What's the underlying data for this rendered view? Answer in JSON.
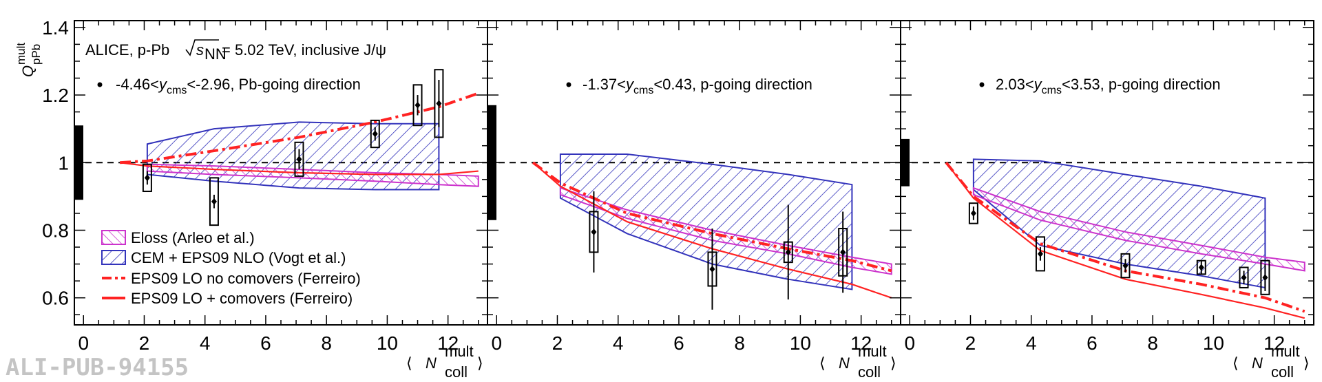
{
  "chart_data": {
    "type": "line",
    "experiment": "ALICE, p-Pb",
    "energy_value": "= 5.02 TeV, inclusive J/ψ",
    "ylabel": "Q",
    "ylabel_sup": "mult",
    "ylabel_sub": "pPb",
    "xlabel": "N",
    "xlabel_sup": "mult",
    "xlabel_sub": "coll",
    "watermark": "ALI-PUB-94155",
    "xlim": [
      -0.3,
      13.3
    ],
    "ylim": [
      0.52,
      1.42
    ],
    "yticks": [
      "0.6",
      "0.8",
      "1",
      "1.2",
      "1.4"
    ],
    "xticks": [
      "0",
      "2",
      "4",
      "6",
      "8",
      "10",
      "12"
    ],
    "colors": {
      "eloss": "#cc33cc",
      "cem": "#3333bb",
      "eps_no_com": "#ff2222",
      "eps_com": "#ff2222",
      "data": "#000000"
    },
    "legend": {
      "placement": "bottom-left of first panel",
      "entries": [
        {
          "key": "eloss",
          "label": "Eloss (Arleo et al.)"
        },
        {
          "key": "cem",
          "label": "CEM + EPS09 NLO (Vogt et al.)"
        },
        {
          "key": "eps_no_com",
          "label": "EPS09 LO no comovers (Ferreiro)"
        },
        {
          "key": "eps_com",
          "label": "EPS09 LO + comovers (Ferreiro)"
        }
      ]
    },
    "panels": [
      {
        "range_pre": "-4.46<",
        "range_post": "<-2.96, Pb-going direction",
        "global_unc": 0.11,
        "data": [
          {
            "x": 2.1,
            "y": 0.955,
            "stat": 0.02,
            "sys": 0.04
          },
          {
            "x": 4.3,
            "y": 0.885,
            "stat": 0.02,
            "sys": 0.07
          },
          {
            "x": 7.1,
            "y": 1.01,
            "stat": 0.03,
            "sys": 0.05
          },
          {
            "x": 9.6,
            "y": 1.085,
            "stat": 0.02,
            "sys": 0.04
          },
          {
            "x": 11.0,
            "y": 1.17,
            "stat": 0.03,
            "sys": 0.06
          },
          {
            "x": 11.7,
            "y": 1.175,
            "stat": 0.07,
            "sys": 0.1
          }
        ],
        "cem": {
          "x": [
            2.1,
            4.3,
            7.1,
            9.6,
            11.7
          ],
          "lo": [
            0.965,
            0.945,
            0.925,
            0.92,
            0.92
          ],
          "hi": [
            1.055,
            1.1,
            1.12,
            1.115,
            1.115
          ]
        },
        "eloss": {
          "x": [
            2.1,
            4.3,
            7.1,
            9.6,
            11.7,
            13.0
          ],
          "lo": [
            0.975,
            0.965,
            0.955,
            0.945,
            0.935,
            0.93
          ],
          "hi": [
            0.995,
            0.99,
            0.98,
            0.97,
            0.965,
            0.96
          ]
        },
        "eps_no_com": {
          "x": [
            1.2,
            2.1,
            4.3,
            7.1,
            9.6,
            11.7,
            13.0
          ],
          "y": [
            1.0,
            1.005,
            1.035,
            1.075,
            1.12,
            1.165,
            1.205
          ]
        },
        "eps_com": {
          "x": [
            1.2,
            2.1,
            4.3,
            7.1,
            9.6,
            11.7,
            13.0
          ],
          "y": [
            1.0,
            0.99,
            0.98,
            0.97,
            0.965,
            0.965,
            0.975
          ]
        }
      },
      {
        "range_pre": "-1.37<",
        "range_post": "<0.43, p-going direction",
        "global_unc": 0.17,
        "data": [
          {
            "x": 3.2,
            "y": 0.795,
            "stat": 0.12,
            "sys": 0.06
          },
          {
            "x": 7.1,
            "y": 0.685,
            "stat": 0.12,
            "sys": 0.05
          },
          {
            "x": 9.6,
            "y": 0.735,
            "stat": 0.14,
            "sys": 0.03
          },
          {
            "x": 11.4,
            "y": 0.735,
            "stat": 0.12,
            "sys": 0.07
          }
        ],
        "cem": {
          "x": [
            2.1,
            4.3,
            7.1,
            9.6,
            11.7
          ],
          "lo": [
            0.895,
            0.79,
            0.7,
            0.655,
            0.625
          ],
          "hi": [
            1.025,
            1.025,
            0.995,
            0.965,
            0.935
          ]
        },
        "eloss": {
          "x": [
            2.1,
            4.3,
            7.1,
            9.6,
            11.7,
            13.0
          ],
          "lo": [
            0.905,
            0.835,
            0.77,
            0.73,
            0.69,
            0.67
          ],
          "hi": [
            0.925,
            0.86,
            0.8,
            0.755,
            0.72,
            0.7
          ]
        },
        "eps_no_com": {
          "x": [
            1.2,
            2.1,
            4.3,
            7.1,
            9.6,
            11.7,
            13.0
          ],
          "y": [
            1.0,
            0.94,
            0.85,
            0.79,
            0.745,
            0.71,
            0.68
          ]
        },
        "eps_com": {
          "x": [
            1.2,
            2.1,
            4.3,
            7.1,
            9.6,
            11.7,
            13.0
          ],
          "y": [
            1.0,
            0.93,
            0.825,
            0.745,
            0.685,
            0.64,
            0.6
          ]
        }
      },
      {
        "range_pre": "2.03<",
        "range_post": "<3.53, p-going direction",
        "global_unc": 0.07,
        "data": [
          {
            "x": 2.1,
            "y": 0.85,
            "stat": 0.02,
            "sys": 0.03
          },
          {
            "x": 4.3,
            "y": 0.73,
            "stat": 0.02,
            "sys": 0.05
          },
          {
            "x": 7.1,
            "y": 0.695,
            "stat": 0.02,
            "sys": 0.035
          },
          {
            "x": 9.6,
            "y": 0.69,
            "stat": 0.02,
            "sys": 0.02
          },
          {
            "x": 11.0,
            "y": 0.66,
            "stat": 0.02,
            "sys": 0.03
          },
          {
            "x": 11.7,
            "y": 0.66,
            "stat": 0.04,
            "sys": 0.05
          }
        ],
        "cem": {
          "x": [
            2.1,
            4.3,
            7.1,
            9.6,
            11.7
          ],
          "lo": [
            0.92,
            0.755,
            0.7,
            0.665,
            0.63
          ],
          "hi": [
            1.01,
            1.005,
            0.965,
            0.93,
            0.895
          ]
        },
        "eloss": {
          "x": [
            2.1,
            4.3,
            7.1,
            9.6,
            11.7,
            13.0
          ],
          "lo": [
            0.905,
            0.83,
            0.77,
            0.73,
            0.7,
            0.68
          ],
          "hi": [
            0.925,
            0.855,
            0.795,
            0.755,
            0.72,
            0.705
          ]
        },
        "eps_no_com": {
          "x": [
            1.2,
            2.1,
            4.3,
            7.1,
            9.6,
            11.7,
            13.0
          ],
          "y": [
            1.0,
            0.9,
            0.76,
            0.68,
            0.64,
            0.6,
            0.56
          ]
        },
        "eps_com": {
          "x": [
            1.2,
            2.1,
            4.3,
            7.1,
            9.6,
            11.7,
            13.0
          ],
          "y": [
            1.0,
            0.895,
            0.74,
            0.655,
            0.61,
            0.57,
            0.54
          ]
        }
      }
    ]
  }
}
